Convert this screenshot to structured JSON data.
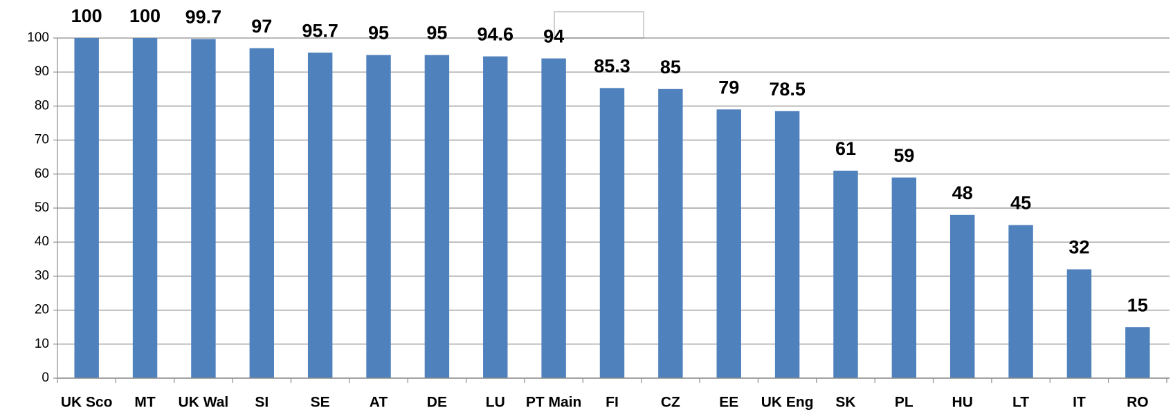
{
  "chart_data": {
    "type": "bar",
    "categories": [
      "UK Sco",
      "MT",
      "UK Wal",
      "SI",
      "SE",
      "AT",
      "DE",
      "LU",
      "PT Main",
      "FI",
      "CZ",
      "EE",
      "UK Eng",
      "SK",
      "PL",
      "HU",
      "LT",
      "IT",
      "RO"
    ],
    "values": [
      100,
      100,
      99.7,
      97,
      95.7,
      95,
      95,
      94.6,
      94,
      85.3,
      85,
      79,
      78.5,
      61,
      59,
      48,
      45,
      32,
      15
    ],
    "color": "#4f81bd",
    "ylim": [
      0,
      100
    ],
    "yticks": [
      0,
      10,
      20,
      30,
      40,
      50,
      60,
      70,
      80,
      90,
      100
    ],
    "grid": true
  }
}
